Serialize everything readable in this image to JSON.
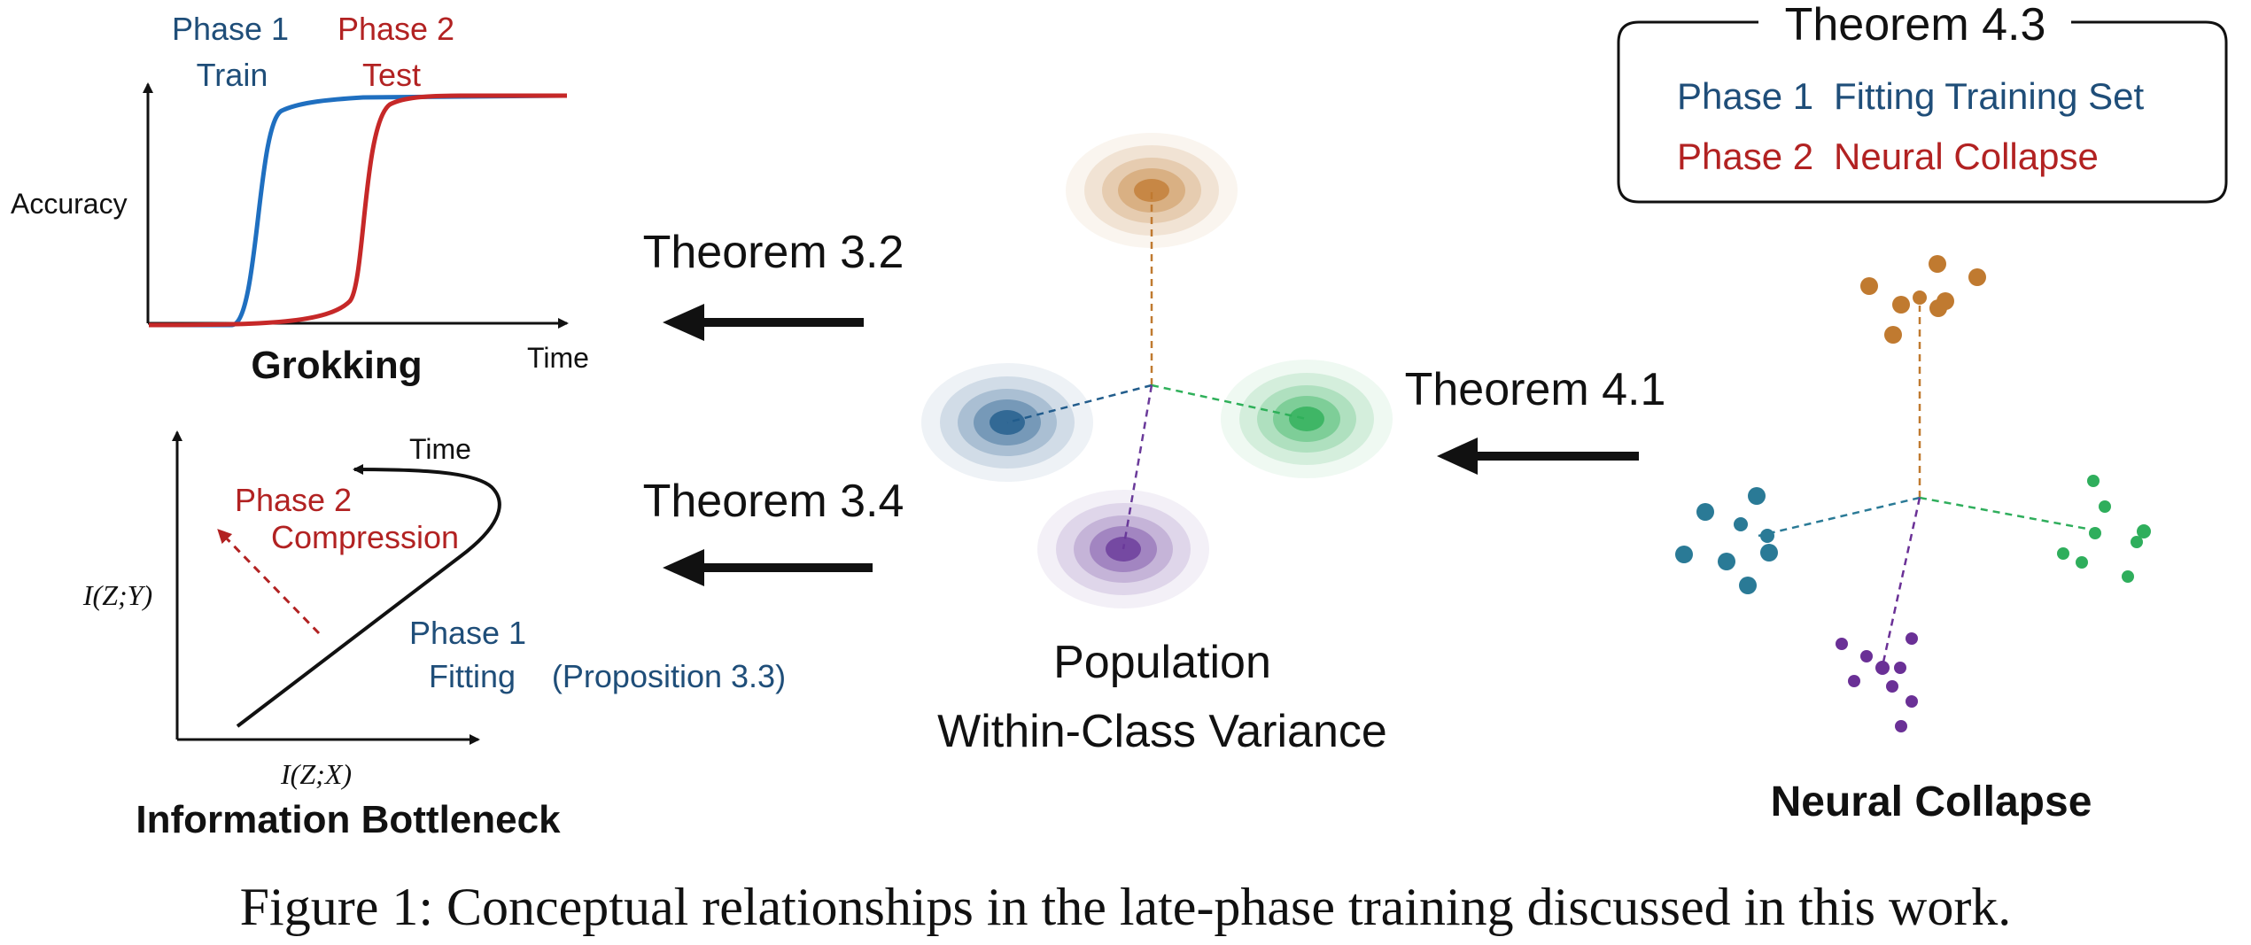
{
  "colors": {
    "blue": "#1f5c96",
    "red": "#b22222",
    "dark": "#111111",
    "orange": "#c07a30",
    "teal_blue": "#225d8c",
    "green": "#2fb05a",
    "purple": "#6a3a9a",
    "nc_blue": "#2a7a96",
    "nc_green": "#2fae5c",
    "nc_purple": "#6a3096"
  },
  "grokking": {
    "phase1": "Phase 1",
    "train": "Train",
    "phase2": "Phase 2",
    "test": "Test",
    "ylabel": "Accuracy",
    "xlabel": "Time",
    "title": "Grokking"
  },
  "ib": {
    "time": "Time",
    "phase2": "Phase 2",
    "compression": "Compression",
    "phase1": "Phase 1",
    "fitting": "Fitting",
    "proposition": "(Proposition 3.3)",
    "ylabel": "I(Z;Y)",
    "xlabel": "I(Z;X)",
    "title": "Information Bottleneck"
  },
  "arrows": {
    "t32": "Theorem 3.2",
    "t34": "Theorem 3.4",
    "t41": "Theorem 4.1"
  },
  "population": {
    "line1": "Population",
    "line2": "Within-Class Variance"
  },
  "theorem43": {
    "title": "Theorem 4.3",
    "row1_phase": "Phase 1",
    "row1_text": "Fitting Training Set",
    "row2_phase": "Phase 2",
    "row2_text": "Neural Collapse"
  },
  "neural_collapse": {
    "title": "Neural Collapse"
  },
  "caption": "Figure 1: Conceptual relationships in the late-phase training discussed in this work."
}
